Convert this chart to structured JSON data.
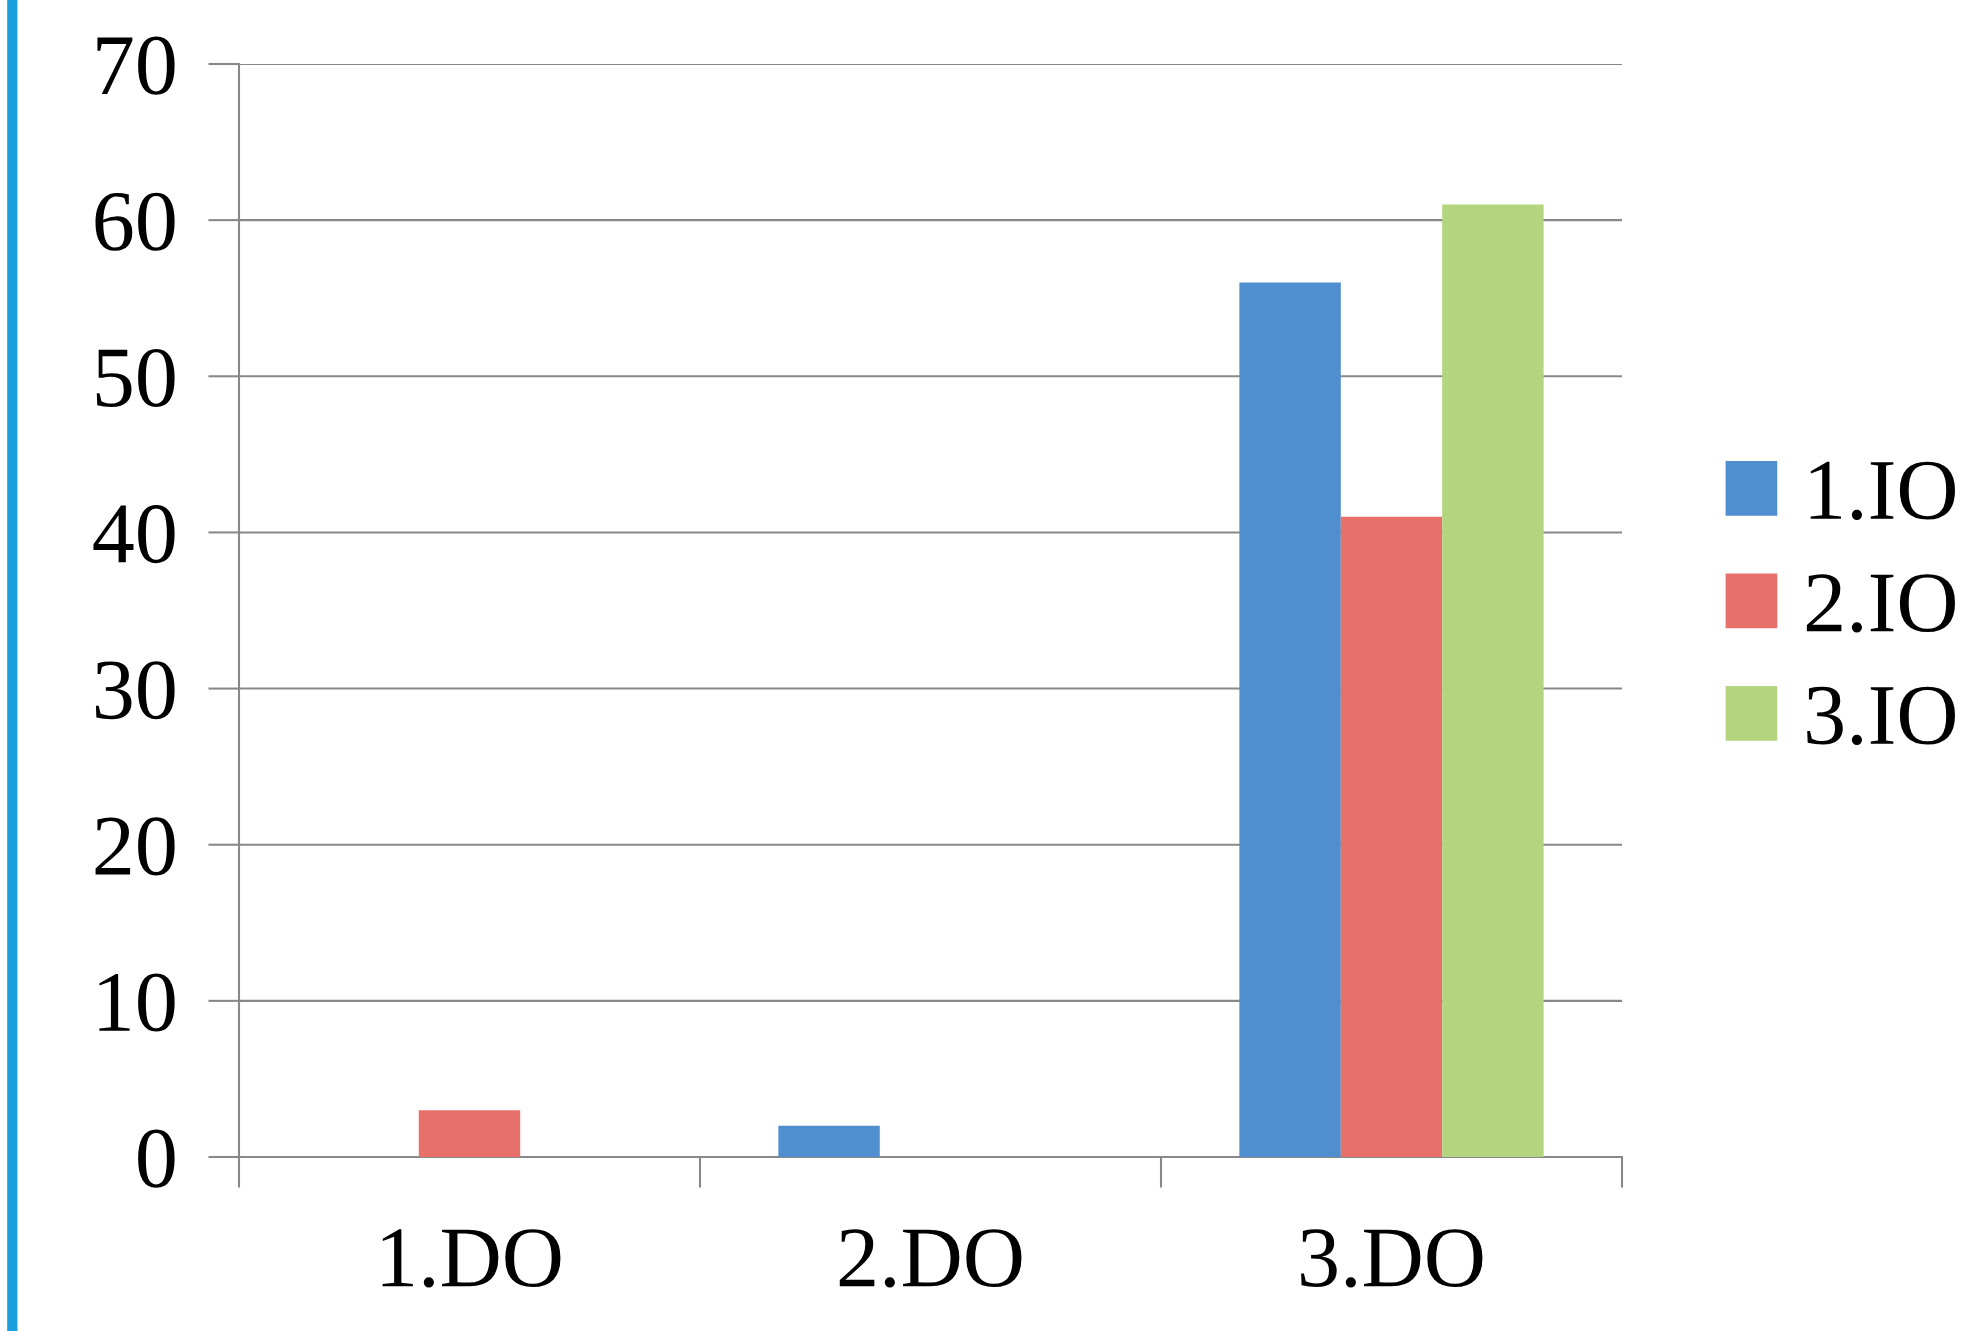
{
  "chart_data": {
    "type": "bar",
    "categories": [
      "1.DO",
      "2.DO",
      "3.DO"
    ],
    "series": [
      {
        "name": "1.IO",
        "color": "#4f8fcf",
        "values": [
          0,
          2,
          56
        ]
      },
      {
        "name": "2.IO",
        "color": "#e8706a",
        "values": [
          3,
          0,
          41
        ]
      },
      {
        "name": "3.IO",
        "color": "#b3d57f",
        "values": [
          0,
          0,
          61
        ]
      }
    ],
    "ylim": [
      0,
      70
    ],
    "yticks": [
      0,
      10,
      20,
      30,
      40,
      50,
      60,
      70
    ],
    "grid": "y",
    "legend": "right"
  }
}
